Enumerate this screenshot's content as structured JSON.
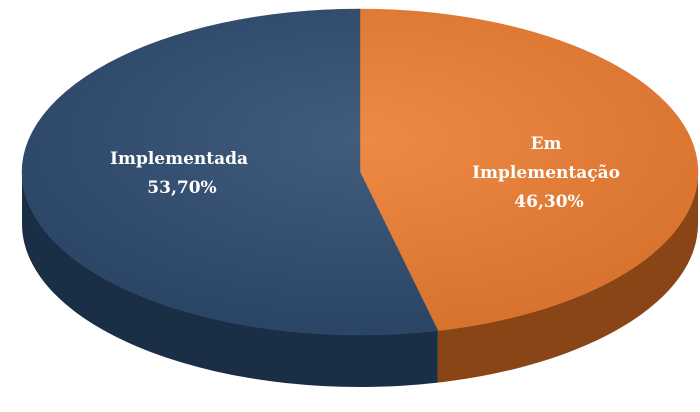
{
  "chart_data": {
    "type": "pie",
    "style": "3d",
    "slices": [
      {
        "label_lines": [
          "Em",
          "Implementação"
        ],
        "value_label": "46,30%",
        "value": 46.3,
        "color": "#ED7D31",
        "side_color": "#8A4516"
      },
      {
        "label_lines": [
          "Implementada"
        ],
        "value_label": "53,70%",
        "value": 53.7,
        "color": "#2C4A6E",
        "side_color": "#1A2E45"
      }
    ],
    "title": "",
    "legend": "none"
  }
}
